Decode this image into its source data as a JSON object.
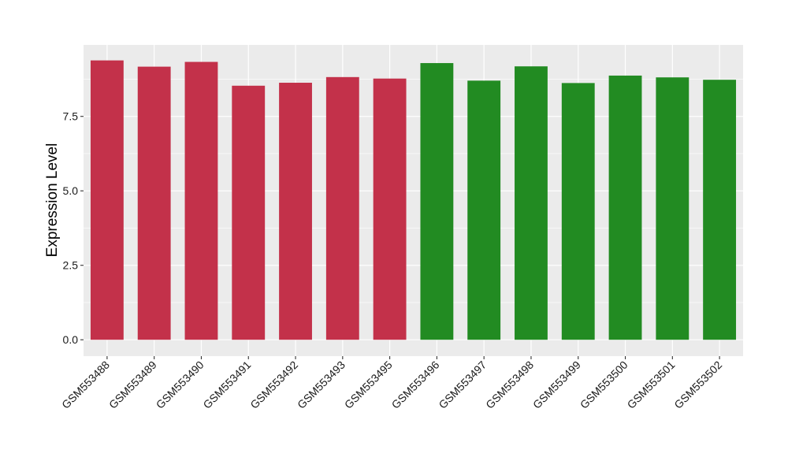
{
  "chart_data": {
    "type": "bar",
    "categories": [
      "GSM553488",
      "GSM553489",
      "GSM553490",
      "GSM553491",
      "GSM553492",
      "GSM553493",
      "GSM553495",
      "GSM553496",
      "GSM553497",
      "GSM553498",
      "GSM553499",
      "GSM553500",
      "GSM553501",
      "GSM553502"
    ],
    "values": [
      9.38,
      9.17,
      9.33,
      8.53,
      8.63,
      8.82,
      8.77,
      9.29,
      8.7,
      9.18,
      8.62,
      8.87,
      8.81,
      8.73
    ],
    "bar_colors": [
      "#C3314A",
      "#C3314A",
      "#C3314A",
      "#C3314A",
      "#C3314A",
      "#C3314A",
      "#C3314A",
      "#228B22",
      "#228B22",
      "#228B22",
      "#228B22",
      "#228B22",
      "#228B22",
      "#228B22"
    ],
    "ylabel": "Expression Level",
    "xlabel": "",
    "ylim": [
      -0.55,
      9.9
    ],
    "yticks": [
      0.0,
      2.5,
      5.0,
      7.5
    ],
    "ytick_labels": [
      "0.0",
      "2.5",
      "5.0",
      "7.5"
    ],
    "grid": true,
    "legend": "none",
    "panel_background": "#EBEBEB",
    "grid_color": "#FFFFFF"
  }
}
